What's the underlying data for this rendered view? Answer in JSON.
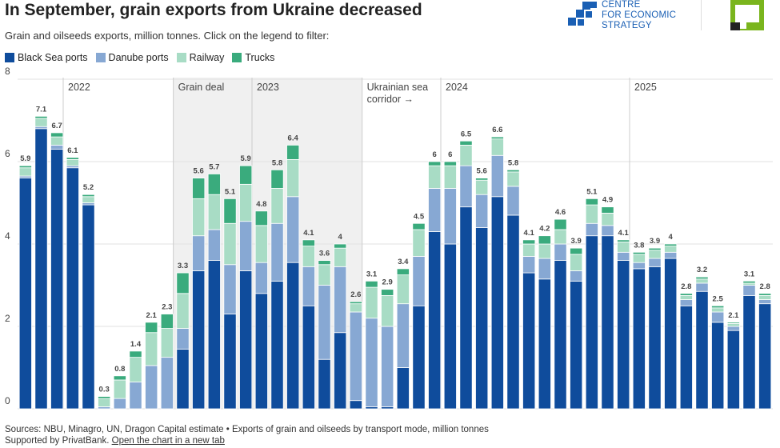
{
  "header": {
    "title": "In September, grain exports from Ukraine decreased",
    "subtitle": "Grain and oilseeds exports, million tonnes. Click on the legend to filter:",
    "logo_lines": [
      "CENTRE",
      "FOR ECONOMIC",
      "STRATEGY"
    ]
  },
  "chart_data": {
    "type": "stacked_bar",
    "categories": [
      null,
      null,
      null,
      null,
      null,
      null,
      null,
      null,
      null,
      null,
      null,
      null,
      null,
      null,
      null,
      null,
      null,
      null,
      null,
      null,
      null,
      null,
      null,
      null,
      null,
      null,
      null,
      null,
      null,
      null,
      null,
      null,
      null,
      null,
      null,
      null,
      null,
      null,
      null,
      null,
      null,
      null,
      null,
      null,
      null,
      null,
      null,
      null
    ],
    "series": [
      {
        "name": "Black Sea ports",
        "color": "#0f4c9c",
        "values": [
          5.6,
          6.8,
          6.3,
          5.85,
          4.95,
          0,
          0,
          0,
          0,
          0,
          1.45,
          3.35,
          3.6,
          2.3,
          3.35,
          2.8,
          3.1,
          3.55,
          2.5,
          1.2,
          1.85,
          0.2,
          0.05,
          0.05,
          1.0,
          2.5,
          4.3,
          4.0,
          4.9,
          4.4,
          5.15,
          4.7,
          3.3,
          3.15,
          3.6,
          3.1,
          4.2,
          4.2,
          3.6,
          3.4,
          3.45,
          3.65,
          2.5,
          2.85,
          2.1,
          1.9,
          2.75,
          2.55
        ]
      },
      {
        "name": "Danube ports",
        "color": "#87a8d3",
        "values": [
          0.05,
          0.05,
          0.1,
          0.05,
          0.05,
          0.05,
          0.25,
          0.65,
          1.05,
          1.25,
          0.5,
          0.85,
          0.75,
          1.2,
          1.2,
          0.75,
          1.4,
          1.6,
          0.95,
          1.8,
          1.6,
          2.15,
          2.15,
          1.95,
          1.55,
          1.2,
          1.05,
          1.35,
          1.0,
          0.8,
          1.0,
          0.7,
          0.4,
          0.5,
          0.4,
          0.25,
          0.3,
          0.25,
          0.2,
          0.15,
          0.2,
          0.15,
          0.15,
          0.2,
          0.25,
          0.1,
          0.25,
          0.1
        ]
      },
      {
        "name": "Railway",
        "color": "#a8dcc5",
        "values": [
          0.2,
          0.2,
          0.2,
          0.15,
          0.15,
          0.2,
          0.45,
          0.6,
          0.8,
          0.7,
          0.85,
          0.9,
          0.85,
          1.0,
          0.9,
          0.9,
          0.85,
          0.9,
          0.5,
          0.5,
          0.45,
          0.2,
          0.75,
          0.75,
          0.7,
          0.65,
          0.55,
          0.55,
          0.5,
          0.35,
          0.4,
          0.35,
          0.3,
          0.35,
          0.35,
          0.4,
          0.45,
          0.3,
          0.25,
          0.2,
          0.2,
          0.15,
          0.1,
          0.1,
          0.1,
          0.07,
          0.05,
          0.1
        ]
      },
      {
        "name": "Trucks",
        "color": "#3aab7d",
        "values": [
          0.05,
          0.05,
          0.1,
          0.05,
          0.05,
          0.05,
          0.1,
          0.15,
          0.25,
          0.35,
          0.5,
          0.5,
          0.5,
          0.6,
          0.45,
          0.35,
          0.45,
          0.35,
          0.15,
          0.1,
          0.1,
          0.05,
          0.15,
          0.15,
          0.15,
          0.15,
          0.1,
          0.1,
          0.1,
          0.05,
          0.05,
          0.05,
          0.1,
          0.2,
          0.25,
          0.15,
          0.15,
          0.15,
          0.05,
          0.05,
          0.05,
          0.05,
          0.05,
          0.05,
          0.05,
          0.03,
          0.05,
          0.05
        ]
      }
    ],
    "totals": [
      5.9,
      7.1,
      6.7,
      6.1,
      5.2,
      0.3,
      0.8,
      1.4,
      2.1,
      2.3,
      3.3,
      5.6,
      5.7,
      5.1,
      5.9,
      4.8,
      5.8,
      6.4,
      4.1,
      3.6,
      4,
      2.6,
      3.1,
      2.9,
      3.4,
      4.5,
      6,
      6,
      6.5,
      5.6,
      6.6,
      5.8,
      4.1,
      4.2,
      4.6,
      3.9,
      5.1,
      4.9,
      4.1,
      3.8,
      3.9,
      4,
      2.8,
      3.2,
      2.5,
      2.1,
      3.1,
      2.8
    ],
    "annotations": [
      {
        "label": "2022",
        "index": 3
      },
      {
        "label": "Grain deal",
        "index": 10
      },
      {
        "label": "2023",
        "index": 15
      },
      {
        "label": "Ukrainian sea corridor →",
        "index": 22
      },
      {
        "label": "2024",
        "index": 27
      },
      {
        "label": "2025",
        "index": 39
      }
    ],
    "ylim": [
      0,
      8
    ],
    "yticks": [
      0,
      2,
      4,
      6,
      8
    ],
    "grid": true
  },
  "footer": {
    "sources": "Sources: NBU, Minagro, UN, Dragon Capital estimate • Exports of grain and oilseeds by transport mode, million tonnes",
    "support": "Supported by PrivatBank.",
    "link": "Open the chart in a new tab"
  }
}
